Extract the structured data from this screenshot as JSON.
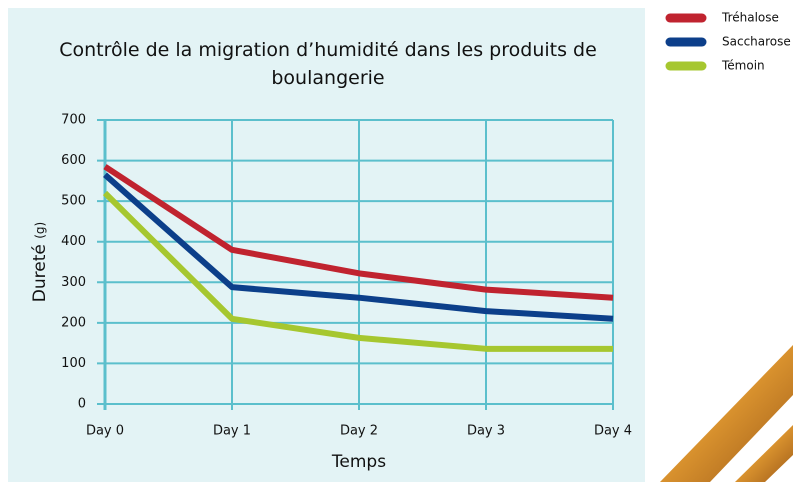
{
  "chart_data": {
    "type": "line",
    "title": "Contrôle de la migration d’humidité dans les produits de boulangerie",
    "x_label": "Temps",
    "y_label": "Dureté",
    "y_label_unit": "(g)",
    "categories": [
      "Day 0",
      "Day 1",
      "Day 2",
      "Day 3",
      "Day 4"
    ],
    "series": [
      {
        "name": "Tréhalose",
        "color": "#c0232f",
        "values": [
          585,
          380,
          322,
          282,
          262
        ]
      },
      {
        "name": "Saccharose",
        "color": "#0c3f8a",
        "values": [
          565,
          288,
          262,
          229,
          210
        ]
      },
      {
        "name": "Témoin",
        "color": "#a6c72f",
        "values": [
          520,
          210,
          163,
          136,
          136
        ]
      }
    ],
    "ylim": [
      0,
      700
    ],
    "yticks": [
      0,
      100,
      200,
      300,
      400,
      500,
      600,
      700
    ],
    "grid": true,
    "grid_color": "#5bbfcc",
    "legend": "top-right"
  }
}
